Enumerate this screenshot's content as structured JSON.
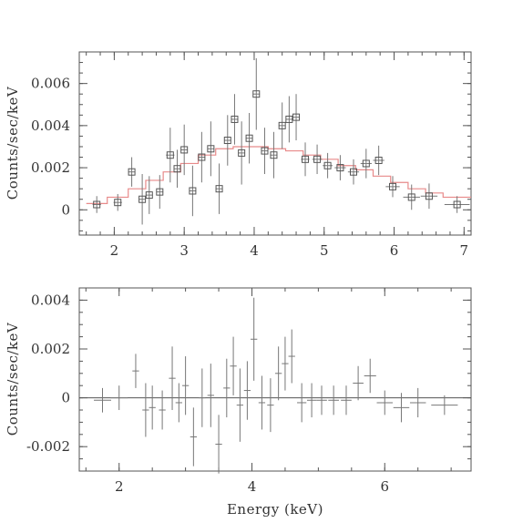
{
  "chart_data": [
    {
      "type": "scatter",
      "ylabel": "Counts/sec/keV",
      "xlim": [
        1.5,
        7.1
      ],
      "ylim": [
        -0.0012,
        0.0075
      ],
      "xticks_major": [
        2,
        3,
        4,
        5,
        6,
        7
      ],
      "xtick_labels": [
        "2",
        "3",
        "4",
        "5",
        "6",
        "7"
      ],
      "yticks_major": [
        0,
        0.002,
        0.004,
        0.006
      ],
      "ytick_labels": [
        "0",
        "0.002",
        "0.004",
        "0.006"
      ],
      "series": [
        {
          "kind": "data_with_errors",
          "points": [
            {
              "x": 1.75,
              "y": 0.00025,
              "xerr": 0.06,
              "yerr": 0.0004
            },
            {
              "x": 2.05,
              "y": 0.00035,
              "xerr": 0.06,
              "yerr": 0.0004
            },
            {
              "x": 2.25,
              "y": 0.0018,
              "xerr": 0.05,
              "yerr": 0.0007
            },
            {
              "x": 2.4,
              "y": 0.0005,
              "xerr": 0.05,
              "yerr": 0.0012
            },
            {
              "x": 2.5,
              "y": 0.0007,
              "xerr": 0.05,
              "yerr": 0.0009
            },
            {
              "x": 2.65,
              "y": 0.00085,
              "xerr": 0.05,
              "yerr": 0.0008
            },
            {
              "x": 2.8,
              "y": 0.0026,
              "xerr": 0.06,
              "yerr": 0.0013
            },
            {
              "x": 2.9,
              "y": 0.00195,
              "xerr": 0.05,
              "yerr": 0.0009
            },
            {
              "x": 3.0,
              "y": 0.00285,
              "xerr": 0.05,
              "yerr": 0.0012
            },
            {
              "x": 3.12,
              "y": 0.0009,
              "xerr": 0.05,
              "yerr": 0.0012
            },
            {
              "x": 3.25,
              "y": 0.0025,
              "xerr": 0.05,
              "yerr": 0.0012
            },
            {
              "x": 3.38,
              "y": 0.0029,
              "xerr": 0.05,
              "yerr": 0.0013
            },
            {
              "x": 3.5,
              "y": 0.001,
              "xerr": 0.05,
              "yerr": 0.0012
            },
            {
              "x": 3.62,
              "y": 0.0033,
              "xerr": 0.05,
              "yerr": 0.0012
            },
            {
              "x": 3.72,
              "y": 0.0043,
              "xerr": 0.05,
              "yerr": 0.0012
            },
            {
              "x": 3.82,
              "y": 0.0027,
              "xerr": 0.05,
              "yerr": 0.0015
            },
            {
              "x": 3.93,
              "y": 0.0034,
              "xerr": 0.05,
              "yerr": 0.0012
            },
            {
              "x": 4.03,
              "y": 0.0055,
              "xerr": 0.05,
              "yerr": 0.0017
            },
            {
              "x": 4.15,
              "y": 0.0028,
              "xerr": 0.05,
              "yerr": 0.0011
            },
            {
              "x": 4.28,
              "y": 0.0026,
              "xerr": 0.05,
              "yerr": 0.0011
            },
            {
              "x": 4.4,
              "y": 0.004,
              "xerr": 0.05,
              "yerr": 0.0011
            },
            {
              "x": 4.5,
              "y": 0.0043,
              "xerr": 0.05,
              "yerr": 0.0011
            },
            {
              "x": 4.6,
              "y": 0.0044,
              "xerr": 0.05,
              "yerr": 0.0011
            },
            {
              "x": 4.73,
              "y": 0.0024,
              "xerr": 0.06,
              "yerr": 0.0008
            },
            {
              "x": 4.9,
              "y": 0.0024,
              "xerr": 0.07,
              "yerr": 0.0007
            },
            {
              "x": 5.05,
              "y": 0.0021,
              "xerr": 0.07,
              "yerr": 0.0006
            },
            {
              "x": 5.23,
              "y": 0.002,
              "xerr": 0.08,
              "yerr": 0.0006
            },
            {
              "x": 5.42,
              "y": 0.0018,
              "xerr": 0.08,
              "yerr": 0.0006
            },
            {
              "x": 5.6,
              "y": 0.0022,
              "xerr": 0.08,
              "yerr": 0.0007
            },
            {
              "x": 5.78,
              "y": 0.00235,
              "xerr": 0.08,
              "yerr": 0.0007
            },
            {
              "x": 5.98,
              "y": 0.0011,
              "xerr": 0.1,
              "yerr": 0.0005
            },
            {
              "x": 6.25,
              "y": 0.0006,
              "xerr": 0.12,
              "yerr": 0.0006
            },
            {
              "x": 6.5,
              "y": 0.00065,
              "xerr": 0.12,
              "yerr": 0.0006
            },
            {
              "x": 6.9,
              "y": 0.00025,
              "xerr": 0.18,
              "yerr": 0.0004
            }
          ]
        },
        {
          "kind": "model_step",
          "color": "#e88a8a",
          "x": [
            1.6,
            1.9,
            2.2,
            2.45,
            2.7,
            2.95,
            3.2,
            3.45,
            3.7,
            3.95,
            4.2,
            4.45,
            4.7,
            4.95,
            5.2,
            5.45,
            5.7,
            5.95,
            6.2,
            6.45,
            6.7,
            7.1
          ],
          "y": [
            0.0003,
            0.0006,
            0.001,
            0.0014,
            0.0018,
            0.0022,
            0.0026,
            0.0029,
            0.003,
            0.003,
            0.0029,
            0.0028,
            0.0026,
            0.0024,
            0.0021,
            0.0019,
            0.0016,
            0.0013,
            0.001,
            0.0008,
            0.0006,
            0.0005
          ]
        }
      ]
    },
    {
      "type": "scatter",
      "xlabel": "Energy (keV)",
      "ylabel": "Counts/sec/keV",
      "xlim": [
        1.4,
        7.3
      ],
      "ylim": [
        -0.003,
        0.0045
      ],
      "xticks_major": [
        2,
        4,
        6
      ],
      "xtick_labels": [
        "2",
        "4",
        "6"
      ],
      "yticks_major": [
        -0.002,
        0,
        0.002,
        0.004
      ],
      "ytick_labels": [
        "-0.002",
        "0",
        "0.002",
        "0.004"
      ],
      "zero_line": true,
      "series": [
        {
          "kind": "residuals_with_errors",
          "points": [
            {
              "x": 1.75,
              "y": -0.0001,
              "xerr": 0.13,
              "yerr": 0.0005
            },
            {
              "x": 2.0,
              "y": 0.0,
              "xerr": 0.13,
              "yerr": 0.0005
            },
            {
              "x": 2.25,
              "y": 0.0011,
              "xerr": 0.05,
              "yerr": 0.0007
            },
            {
              "x": 2.4,
              "y": -0.0005,
              "xerr": 0.05,
              "yerr": 0.0011
            },
            {
              "x": 2.5,
              "y": -0.0004,
              "xerr": 0.05,
              "yerr": 0.0009
            },
            {
              "x": 2.65,
              "y": -0.0005,
              "xerr": 0.05,
              "yerr": 0.0008
            },
            {
              "x": 2.8,
              "y": 0.0008,
              "xerr": 0.05,
              "yerr": 0.0013
            },
            {
              "x": 2.9,
              "y": -0.0002,
              "xerr": 0.05,
              "yerr": 0.0008
            },
            {
              "x": 3.0,
              "y": 0.0005,
              "xerr": 0.05,
              "yerr": 0.0012
            },
            {
              "x": 3.12,
              "y": -0.0016,
              "xerr": 0.05,
              "yerr": 0.0012
            },
            {
              "x": 3.25,
              "y": 0.0,
              "xerr": 0.05,
              "yerr": 0.0012
            },
            {
              "x": 3.38,
              "y": 0.0001,
              "xerr": 0.05,
              "yerr": 0.0013
            },
            {
              "x": 3.5,
              "y": -0.0019,
              "xerr": 0.05,
              "yerr": 0.0012
            },
            {
              "x": 3.62,
              "y": 0.0004,
              "xerr": 0.05,
              "yerr": 0.0012
            },
            {
              "x": 3.72,
              "y": 0.0013,
              "xerr": 0.05,
              "yerr": 0.0012
            },
            {
              "x": 3.82,
              "y": -0.0003,
              "xerr": 0.05,
              "yerr": 0.0015
            },
            {
              "x": 3.93,
              "y": 0.0003,
              "xerr": 0.05,
              "yerr": 0.0012
            },
            {
              "x": 4.03,
              "y": 0.0024,
              "xerr": 0.05,
              "yerr": 0.0017
            },
            {
              "x": 4.15,
              "y": -0.0002,
              "xerr": 0.05,
              "yerr": 0.0011
            },
            {
              "x": 4.28,
              "y": -0.0003,
              "xerr": 0.05,
              "yerr": 0.0011
            },
            {
              "x": 4.4,
              "y": 0.001,
              "xerr": 0.05,
              "yerr": 0.0011
            },
            {
              "x": 4.5,
              "y": 0.0014,
              "xerr": 0.05,
              "yerr": 0.0011
            },
            {
              "x": 4.6,
              "y": 0.0017,
              "xerr": 0.05,
              "yerr": 0.0011
            },
            {
              "x": 4.75,
              "y": -0.0002,
              "xerr": 0.07,
              "yerr": 0.0008
            },
            {
              "x": 4.9,
              "y": -0.0001,
              "xerr": 0.07,
              "yerr": 0.0007
            },
            {
              "x": 5.05,
              "y": -0.0001,
              "xerr": 0.08,
              "yerr": 0.0006
            },
            {
              "x": 5.23,
              "y": -0.0001,
              "xerr": 0.08,
              "yerr": 0.0006
            },
            {
              "x": 5.42,
              "y": -0.0001,
              "xerr": 0.08,
              "yerr": 0.0006
            },
            {
              "x": 5.6,
              "y": 0.0006,
              "xerr": 0.08,
              "yerr": 0.0007
            },
            {
              "x": 5.78,
              "y": 0.0009,
              "xerr": 0.09,
              "yerr": 0.0007
            },
            {
              "x": 6.0,
              "y": -0.0002,
              "xerr": 0.12,
              "yerr": 0.0005
            },
            {
              "x": 6.25,
              "y": -0.0004,
              "xerr": 0.12,
              "yerr": 0.0006
            },
            {
              "x": 6.5,
              "y": -0.0002,
              "xerr": 0.12,
              "yerr": 0.0006
            },
            {
              "x": 6.9,
              "y": -0.0003,
              "xerr": 0.2,
              "yerr": 0.0004
            }
          ]
        }
      ]
    }
  ]
}
